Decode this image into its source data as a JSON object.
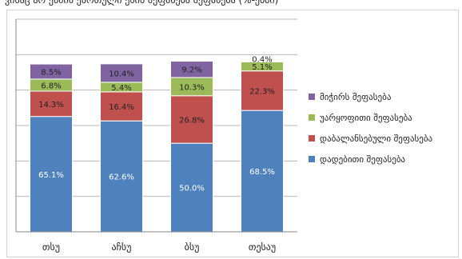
{
  "caption": "ვისაც არ ესმის ქართული ენის შეფასება შეფასება (%-ებში)",
  "chart_data": {
    "type": "bar",
    "stacked": true,
    "categories": [
      "თსუ",
      "აჩსუ",
      "ბსუ",
      "თესაუ"
    ],
    "series": [
      {
        "name": "დადებითი შეფასება",
        "color": "#4f81bd",
        "values": [
          65.1,
          62.6,
          50.0,
          68.5
        ]
      },
      {
        "name": "დაბალანსებული შეფასება",
        "color": "#c0504d",
        "values": [
          14.3,
          16.4,
          26.8,
          22.3
        ]
      },
      {
        "name": "უარყოფითი შეფასება",
        "color": "#9bbb59",
        "values": [
          6.8,
          5.4,
          10.3,
          5.1
        ]
      },
      {
        "name": "მიჭირს შეფასება",
        "color": "#8064a2",
        "values": [
          8.5,
          10.4,
          9.2,
          0.4
        ]
      }
    ],
    "value_labels": [
      [
        "65.1%",
        "62.6%",
        "50.0%",
        "68.5%"
      ],
      [
        "14.3%",
        "16.4%",
        "26.8%",
        "22.3%"
      ],
      [
        "6.8%",
        "5.4%",
        "10.3%",
        "5.1%"
      ],
      [
        "8.5%",
        "10.4%",
        "9.2%",
        "0.4%"
      ]
    ],
    "ylim": [
      0,
      120
    ],
    "grid": true,
    "legend_position": "right",
    "legend_order": [
      3,
      2,
      1,
      0
    ]
  }
}
